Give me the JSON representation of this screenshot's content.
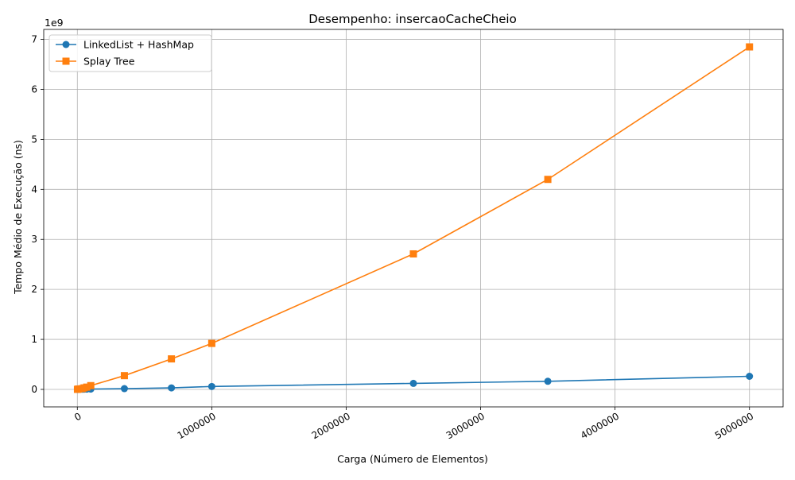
{
  "chart_data": {
    "type": "line",
    "title": "Desempenho: insercaoCacheCheio",
    "xlabel": "Carga (Número de Elementos)",
    "ylabel": "Tempo Médio de Execução (ns)",
    "y_scale_label": "1e9",
    "xlim": [
      -250000,
      5250000
    ],
    "ylim": [
      -350000000,
      7200000000
    ],
    "x_ticks": [
      0,
      1000000,
      2000000,
      3000000,
      4000000,
      5000000
    ],
    "x_tick_labels": [
      "0",
      "1000000",
      "2000000",
      "3000000",
      "4000000",
      "5000000"
    ],
    "y_ticks": [
      0,
      1000000000,
      2000000000,
      3000000000,
      4000000000,
      5000000000,
      6000000000,
      7000000000
    ],
    "y_tick_labels": [
      "0",
      "1",
      "2",
      "3",
      "4",
      "5",
      "6",
      "7"
    ],
    "grid": true,
    "legend_position": "top-left",
    "series": [
      {
        "name": "LinkedList + HashMap",
        "color": "#1f77b4",
        "marker": "circle",
        "x": [
          1000,
          10000,
          35000,
          50000,
          70000,
          100000,
          350000,
          700000,
          1000000,
          2500000,
          3500000,
          5000000
        ],
        "y": [
          500000,
          2000000,
          3000000,
          4000000,
          5000000,
          6000000,
          15000000,
          30000000,
          58000000,
          120000000,
          162000000,
          262000000
        ]
      },
      {
        "name": "Splay Tree",
        "color": "#ff7f0e",
        "marker": "square",
        "x": [
          1000,
          10000,
          35000,
          50000,
          70000,
          100000,
          350000,
          700000,
          1000000,
          2500000,
          3500000,
          5000000
        ],
        "y": [
          1000000,
          8000000,
          15000000,
          30000000,
          45000000,
          75000000,
          275000000,
          610000000,
          920000000,
          2710000000,
          4200000000,
          6850000000
        ]
      }
    ]
  }
}
